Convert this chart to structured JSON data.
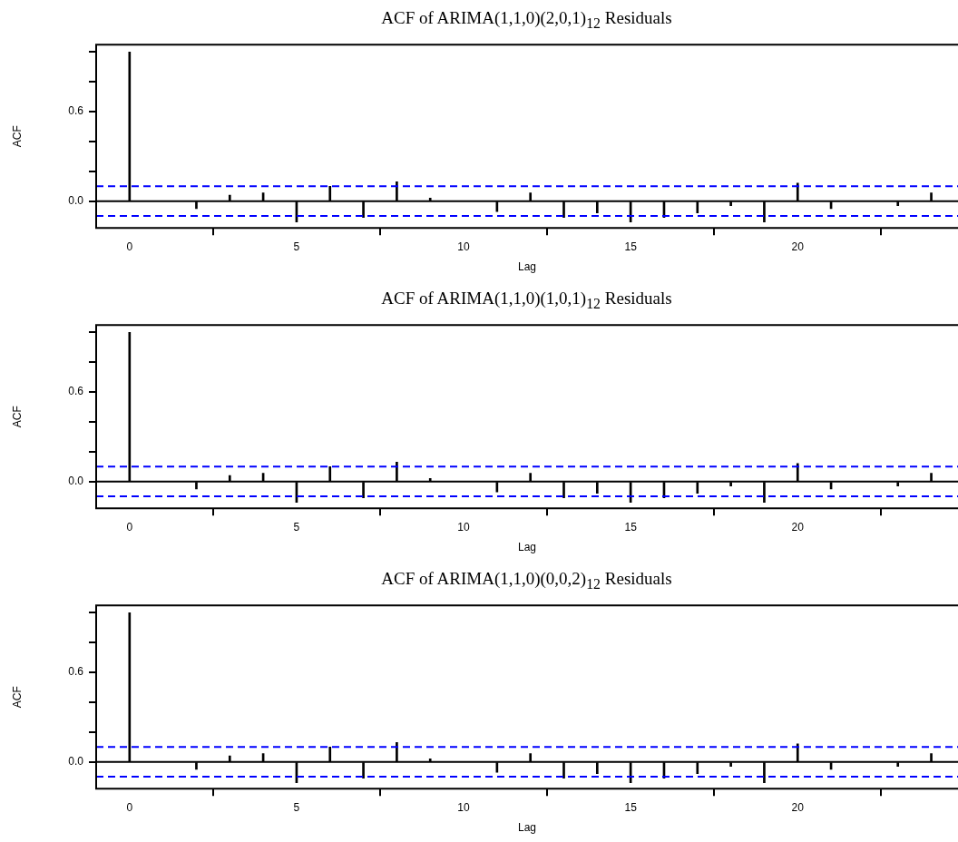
{
  "chart_data": [
    {
      "type": "bar",
      "title": "ACF of ARIMA(1,1,0)(2,0,1)$_{12}$  Residuals",
      "xlabel": "Lag",
      "ylabel": "ACF",
      "x": [
        0,
        1,
        2,
        3,
        4,
        5,
        6,
        7,
        8,
        9,
        10,
        11,
        12,
        13,
        14,
        15,
        16,
        17,
        18,
        19,
        20,
        21,
        22,
        23,
        24
      ],
      "values": [
        1.0,
        0.0,
        -0.05,
        0.04,
        0.055,
        -0.14,
        0.1,
        -0.11,
        0.13,
        0.02,
        0.0,
        -0.07,
        0.055,
        -0.11,
        -0.08,
        -0.14,
        -0.11,
        -0.08,
        -0.03,
        -0.14,
        0.12,
        -0.05,
        0.0,
        -0.03,
        0.055
      ],
      "color": "#000000",
      "xlim": [
        -1,
        24.8
      ],
      "ylim": [
        -0.18,
        1.05
      ],
      "xticks": [
        0,
        5,
        10,
        15,
        20
      ],
      "yticks": [
        {
          "value": 0,
          "label": "0.0"
        },
        {
          "value": 0.2,
          "label": null
        },
        {
          "value": 0.4,
          "label": null
        },
        {
          "value": 0.6,
          "label": "0.6"
        },
        {
          "value": 0.8,
          "label": null
        },
        {
          "value": 1,
          "label": null
        }
      ],
      "ref_lines": [
        {
          "axis": "y",
          "value": 0,
          "color": "#000000",
          "line_style": "solid"
        },
        {
          "axis": "y",
          "value": 0.1,
          "color": "#0000ff",
          "line_style": "dashed"
        },
        {
          "axis": "y",
          "value": -0.1,
          "color": "#0000ff",
          "line_style": "dashed"
        }
      ],
      "grid": false,
      "legend": false
    },
    {
      "type": "bar",
      "title": "ACF of ARIMA(1,1,0)(1,0,1)$_{12}$  Residuals",
      "xlabel": "Lag",
      "ylabel": "ACF",
      "x": [
        0,
        1,
        2,
        3,
        4,
        5,
        6,
        7,
        8,
        9,
        10,
        11,
        12,
        13,
        14,
        15,
        16,
        17,
        18,
        19,
        20,
        21,
        22,
        23,
        24
      ],
      "values": [
        1.0,
        0.0,
        -0.05,
        0.04,
        0.055,
        -0.14,
        0.1,
        -0.11,
        0.13,
        0.02,
        0.0,
        -0.07,
        0.055,
        -0.11,
        -0.08,
        -0.14,
        -0.11,
        -0.08,
        -0.03,
        -0.14,
        0.12,
        -0.05,
        0.0,
        -0.03,
        0.055
      ],
      "color": "#000000",
      "xlim": [
        -1,
        24.8
      ],
      "ylim": [
        -0.18,
        1.05
      ],
      "xticks": [
        0,
        5,
        10,
        15,
        20
      ],
      "yticks": [
        {
          "value": 0,
          "label": "0.0"
        },
        {
          "value": 0.2,
          "label": null
        },
        {
          "value": 0.4,
          "label": null
        },
        {
          "value": 0.6,
          "label": "0.6"
        },
        {
          "value": 0.8,
          "label": null
        },
        {
          "value": 1,
          "label": null
        }
      ],
      "ref_lines": [
        {
          "axis": "y",
          "value": 0,
          "color": "#000000",
          "line_style": "solid"
        },
        {
          "axis": "y",
          "value": 0.1,
          "color": "#0000ff",
          "line_style": "dashed"
        },
        {
          "axis": "y",
          "value": -0.1,
          "color": "#0000ff",
          "line_style": "dashed"
        }
      ],
      "grid": false,
      "legend": false
    },
    {
      "type": "bar",
      "title": "ACF of ARIMA(1,1,0)(0,0,2)$_{12}$  Residuals",
      "xlabel": "Lag",
      "ylabel": "ACF",
      "x": [
        0,
        1,
        2,
        3,
        4,
        5,
        6,
        7,
        8,
        9,
        10,
        11,
        12,
        13,
        14,
        15,
        16,
        17,
        18,
        19,
        20,
        21,
        22,
        23,
        24
      ],
      "values": [
        1.0,
        0.0,
        -0.05,
        0.04,
        0.055,
        -0.14,
        0.1,
        -0.11,
        0.13,
        0.02,
        0.0,
        -0.07,
        0.055,
        -0.11,
        -0.08,
        -0.14,
        -0.11,
        -0.08,
        -0.03,
        -0.14,
        0.12,
        -0.05,
        0.0,
        -0.03,
        0.055
      ],
      "color": "#000000",
      "xlim": [
        -1,
        24.8
      ],
      "ylim": [
        -0.18,
        1.05
      ],
      "xticks": [
        0,
        5,
        10,
        15,
        20
      ],
      "yticks": [
        {
          "value": 0,
          "label": "0.0"
        },
        {
          "value": 0.2,
          "label": null
        },
        {
          "value": 0.4,
          "label": null
        },
        {
          "value": 0.6,
          "label": "0.6"
        },
        {
          "value": 0.8,
          "label": null
        },
        {
          "value": 1,
          "label": null
        }
      ],
      "ref_lines": [
        {
          "axis": "y",
          "value": 0,
          "color": "#000000",
          "line_style": "solid"
        },
        {
          "axis": "y",
          "value": 0.1,
          "color": "#0000ff",
          "line_style": "dashed"
        },
        {
          "axis": "y",
          "value": -0.1,
          "color": "#0000ff",
          "line_style": "dashed"
        }
      ],
      "grid": false,
      "legend": false
    }
  ]
}
